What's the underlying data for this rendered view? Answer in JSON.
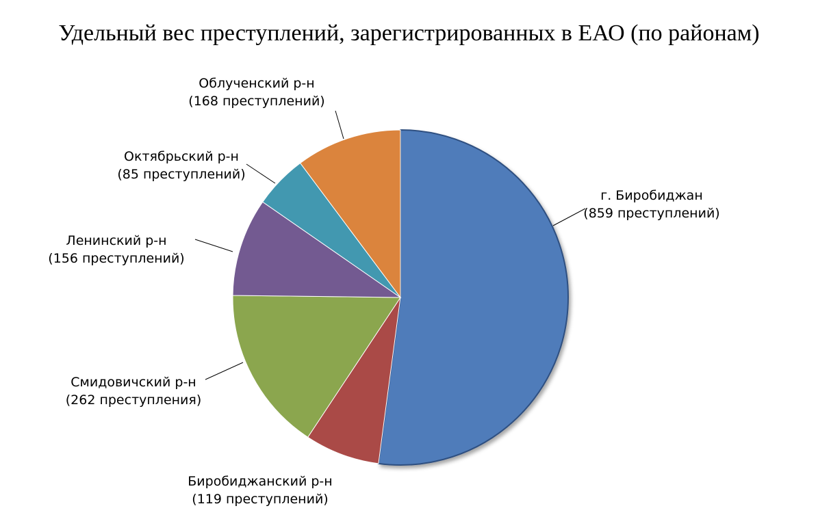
{
  "chart_data": {
    "type": "pie",
    "title": "Удельный вес преступлений, зарегистрированных в ЕАО (по районам)",
    "slices": [
      {
        "label": "г. Биробиджан",
        "sublabel": "(859 преступлений)",
        "value": 859,
        "color": "#4f7cba"
      },
      {
        "label": "Биробиджанский р-н",
        "sublabel": "(119 преступлений)",
        "value": 119,
        "color": "#aa4a47"
      },
      {
        "label": "Смидовичский р-н",
        "sublabel": "(262 преступления)",
        "value": 262,
        "color": "#8ba64e"
      },
      {
        "label": "Ленинский р-н",
        "sublabel": "(156 преступлений)",
        "value": 156,
        "color": "#735a91"
      },
      {
        "label": "Октябрьский р-н",
        "sublabel": "(85 преступлений)",
        "value": 85,
        "color": "#4298b0"
      },
      {
        "label": "Облученский р-н",
        "sublabel": "(168 преступлений)",
        "value": 168,
        "color": "#db843d"
      }
    ]
  }
}
